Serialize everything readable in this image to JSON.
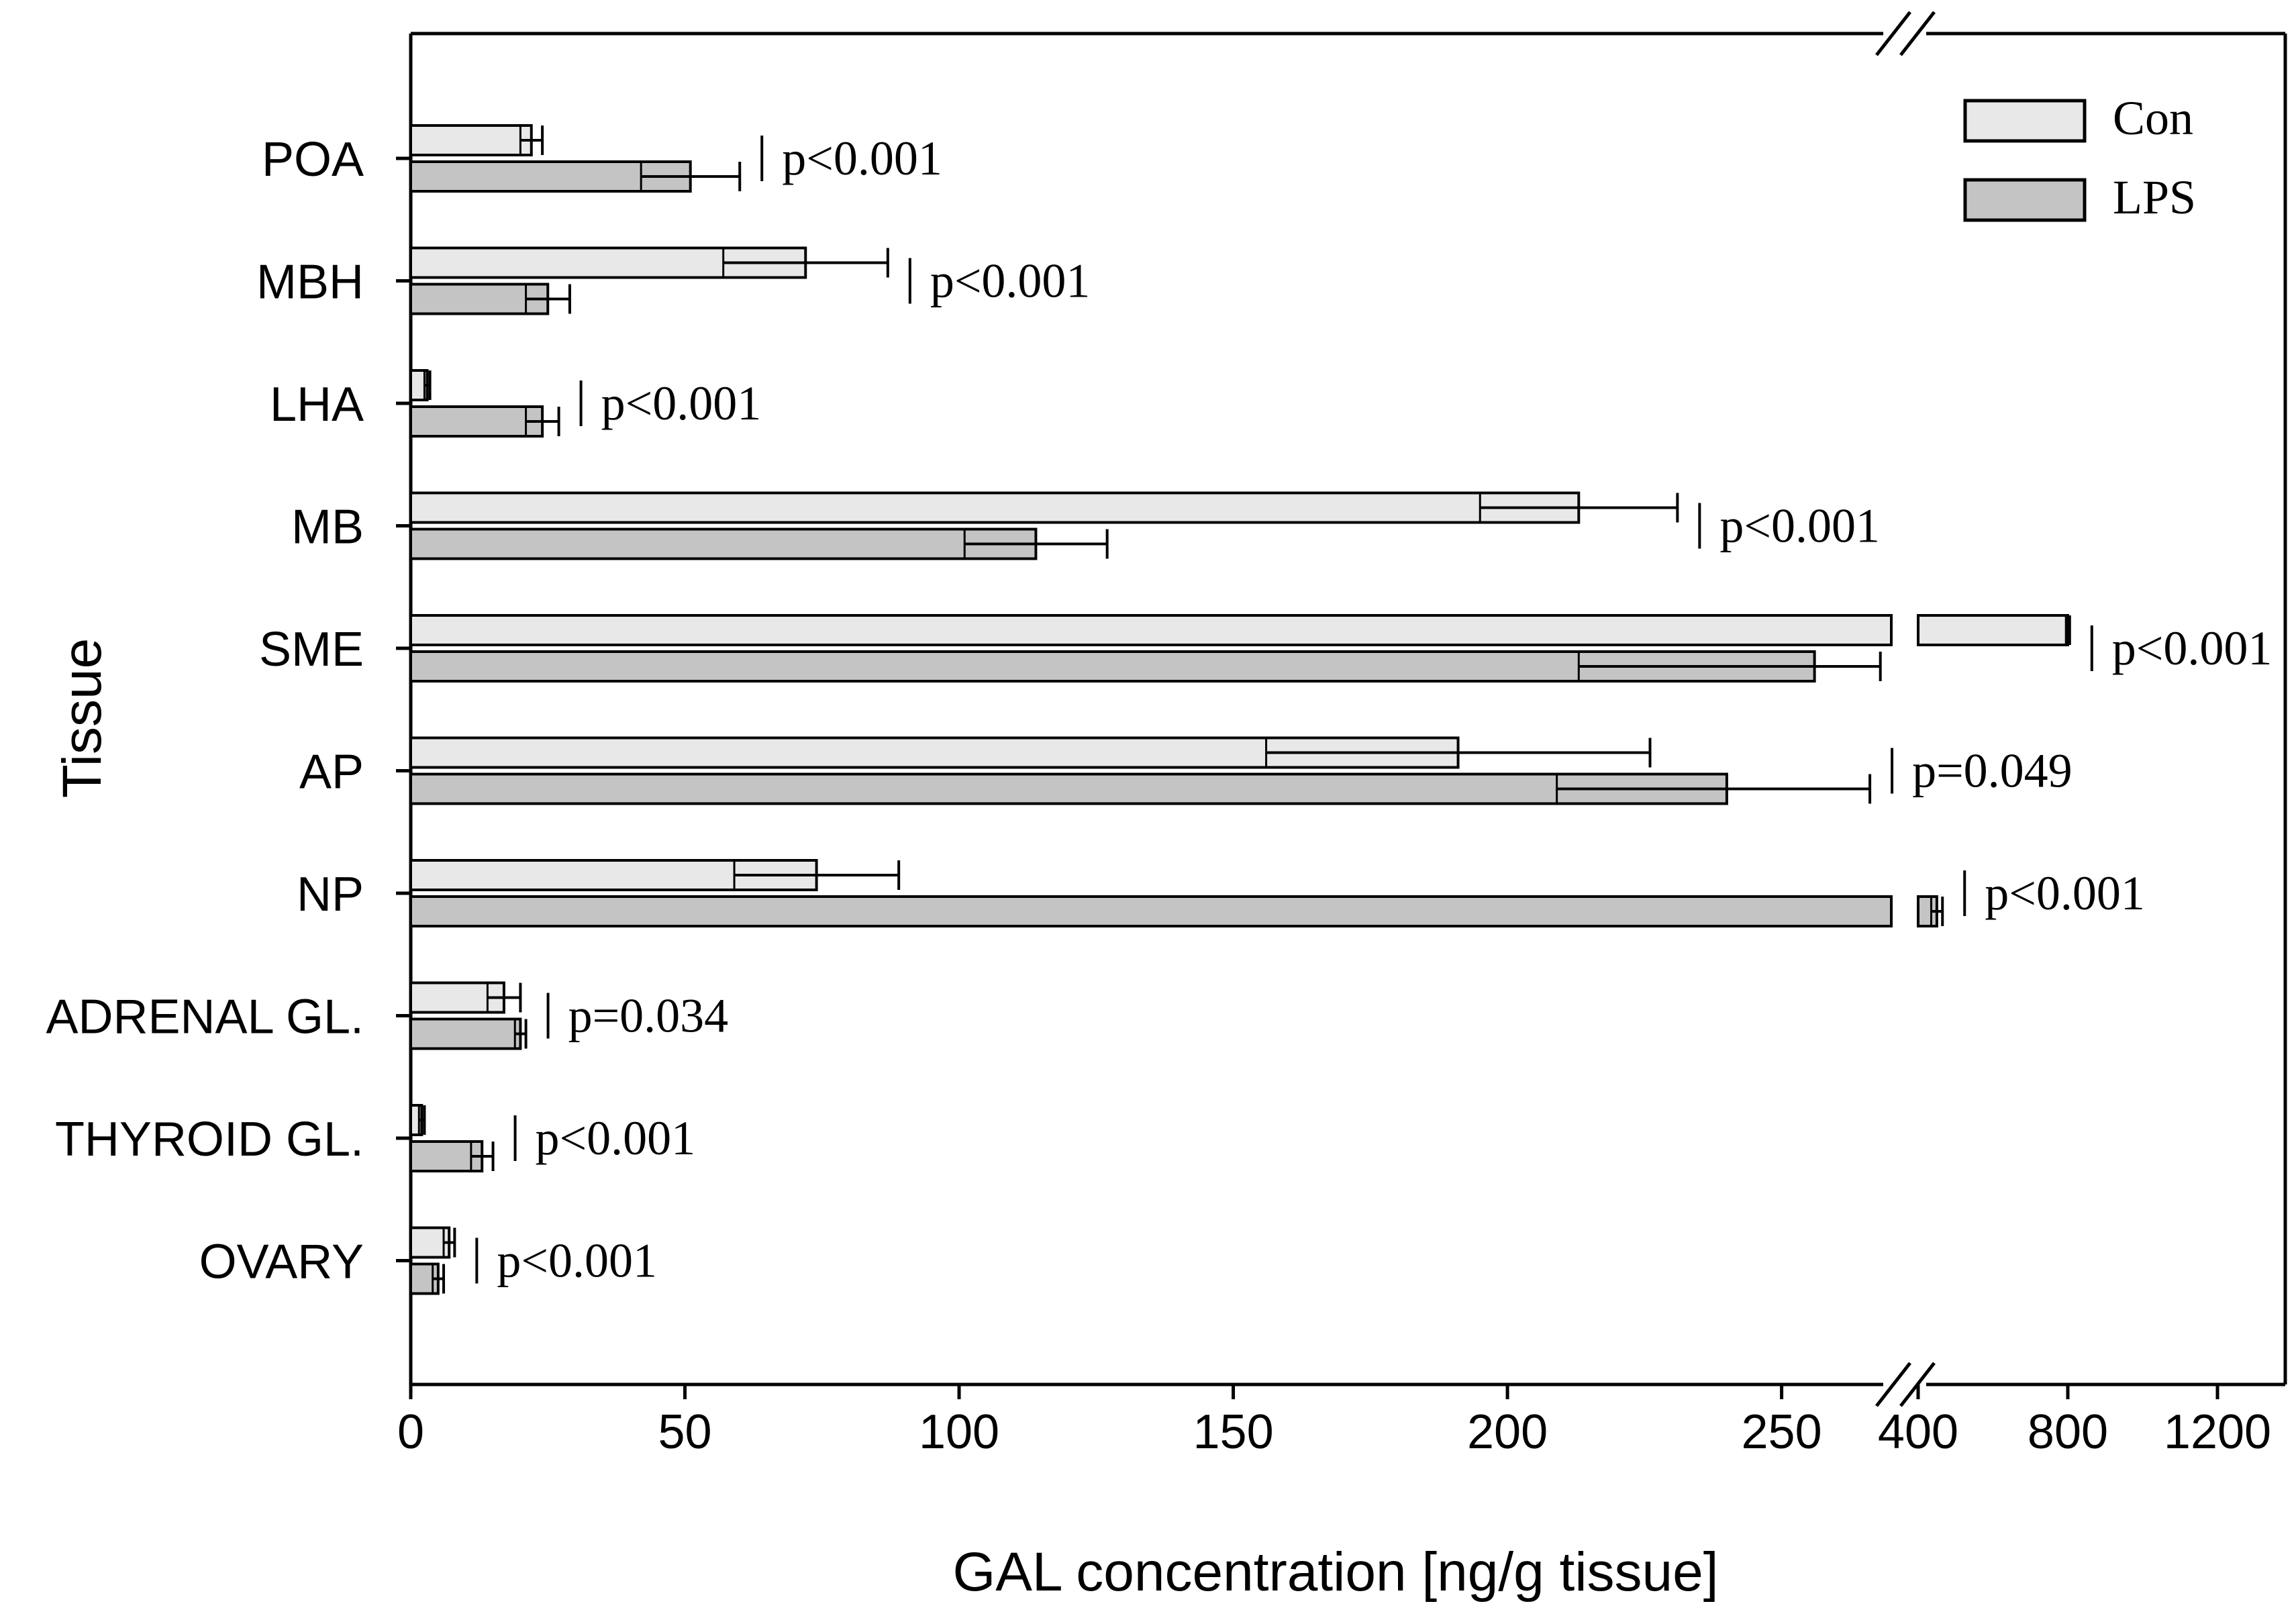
{
  "chart_data": {
    "type": "bar",
    "orientation": "horizontal",
    "title": "",
    "xlabel": "GAL concentration [ng/g tissue]",
    "ylabel": "Tissue",
    "x_axis": {
      "segments": [
        {
          "range": [
            0,
            270
          ],
          "ticks": [
            0,
            50,
            100,
            150,
            200,
            250
          ]
        },
        {
          "range": [
            400,
            1300
          ],
          "ticks": [
            400,
            800,
            1200
          ]
        }
      ],
      "break_between": [
        270,
        400
      ]
    },
    "categories": [
      "POA",
      "MBH",
      "LHA",
      "MB",
      "SME",
      "AP",
      "NP",
      "ADRENAL GL.",
      "THYROID GL.",
      "OVARY"
    ],
    "series": [
      {
        "name": "Con",
        "color": "#e8e8e8",
        "values": [
          22,
          72,
          3,
          213,
          800,
          191,
          74,
          17,
          2,
          7
        ],
        "errors": [
          2,
          15,
          0.5,
          18,
          5,
          35,
          15,
          3,
          0.5,
          1
        ]
      },
      {
        "name": "LPS",
        "color": "#c4c4c4",
        "values": [
          51,
          25,
          24,
          114,
          256,
          240,
          450,
          20,
          13,
          5
        ],
        "errors": [
          9,
          4,
          3,
          13,
          43,
          31,
          15,
          1,
          2,
          1
        ]
      }
    ],
    "annotations": [
      "p<0.001",
      "p<0.001",
      "p<0.001",
      "p<0.001",
      "p<0.001",
      "p=0.049",
      "p<0.001",
      "p=0.034",
      "p<0.001",
      "p<0.001"
    ],
    "legend": {
      "position": "top-right",
      "entries": [
        "Con",
        "LPS"
      ]
    },
    "grid": false
  }
}
